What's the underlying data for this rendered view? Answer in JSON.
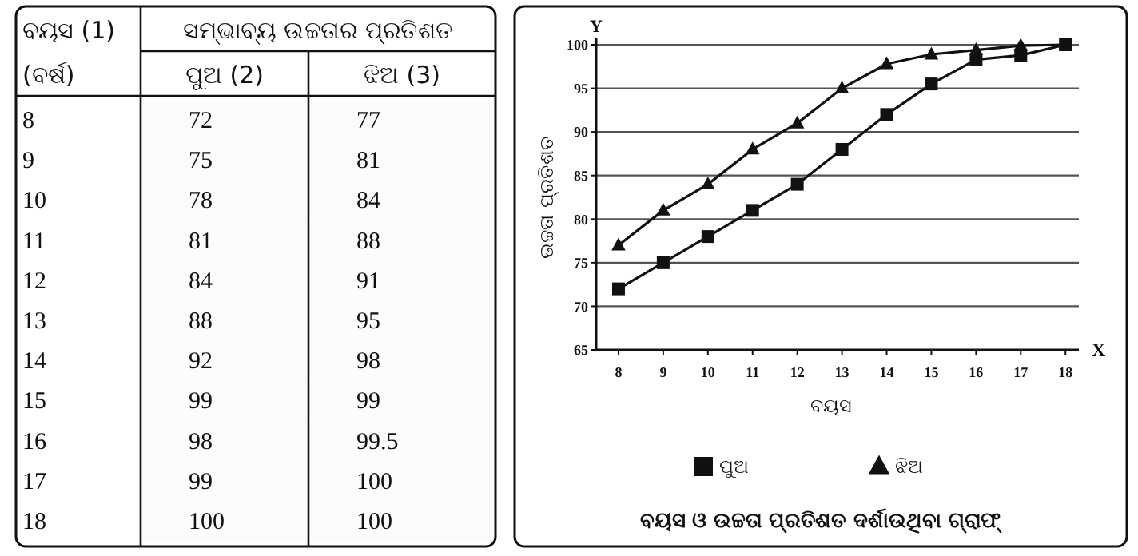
{
  "chart_data": [
    {
      "type": "heatmap",
      "annotations": [
        "ବୟସ (1)",
        "(ବର୍ଷ)",
        "ସମ୍ଭାବ୍ୟ ଉଚ୍ଚତାର ପ୍ରତିଶତ"
      ],
      "categories": [
        "ପୁଅ (2)",
        "ଝିଅ (3)"
      ],
      "y_categories": [
        "8",
        "9",
        "10",
        "11",
        "12",
        "13",
        "14",
        "15",
        "16",
        "17",
        "18"
      ],
      "cells": [
        [
          72,
          77
        ],
        [
          75,
          81
        ],
        [
          78,
          84
        ],
        [
          81,
          88
        ],
        [
          84,
          91
        ],
        [
          88,
          95
        ],
        [
          92,
          98
        ],
        [
          99,
          99
        ],
        [
          98,
          99.5
        ],
        [
          99,
          100
        ],
        [
          100,
          100
        ]
      ],
      "data_labels": true
    },
    {
      "type": "line",
      "title": "ବୟସ ଓ ଉଚ୍ଚତା ପ୍ରତିଶତ ଦର୍ଶାଉଥିବା ଗ୍ରାଫ୍",
      "xlabel": "ବୟସ",
      "ylabel": "ଉଚ୍ଚତା ପ୍ରତିଶତ",
      "annotations": [
        "Y",
        "X"
      ],
      "x": [
        8,
        9,
        10,
        11,
        12,
        13,
        14,
        15,
        16,
        17,
        18
      ],
      "series": [
        {
          "name": "ପୁଅ",
          "color": "#111111",
          "marker": "square",
          "values": [
            72,
            75,
            78,
            81,
            84,
            88,
            92,
            95.5,
            98.3,
            98.8,
            100
          ]
        },
        {
          "name": "ଝିଅ",
          "color": "#111111",
          "marker": "triangle",
          "values": [
            77,
            81,
            84,
            88,
            91,
            95,
            97.8,
            98.9,
            99.4,
            99.9,
            100
          ]
        }
      ],
      "xlim": [
        7.5,
        18.3
      ],
      "xticks": [
        8,
        9,
        10,
        11,
        12,
        13,
        14,
        15,
        16,
        17,
        18
      ],
      "ylim": [
        65,
        100
      ],
      "yticks": [
        65,
        70,
        75,
        80,
        85,
        90,
        95,
        100
      ],
      "grid": "y",
      "legend": "bottom",
      "line_style": "solid"
    }
  ]
}
